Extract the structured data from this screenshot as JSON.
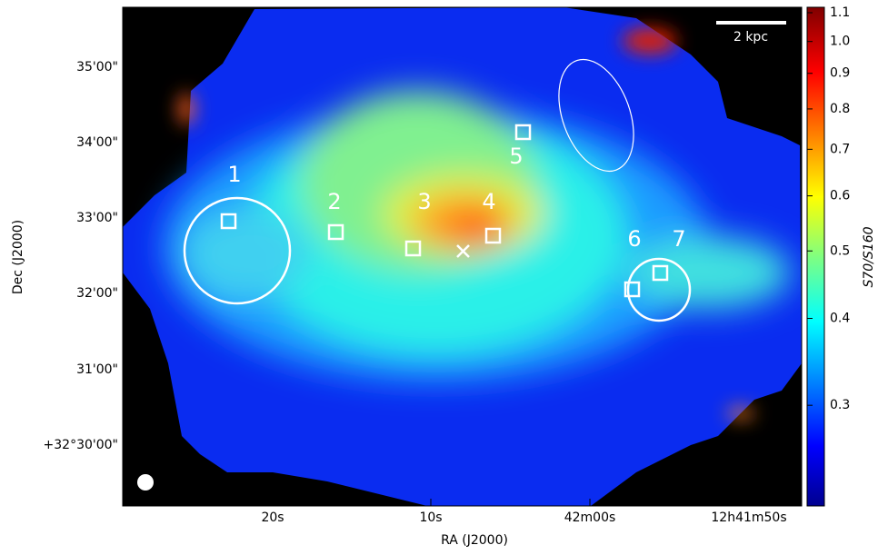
{
  "chart_data": {
    "type": "image",
    "x_label": "RA (J2000)",
    "y_label": "Dec (J2000)",
    "x_tick_labels": [
      "20s",
      "10s",
      "42m00s",
      "12h41m50s"
    ],
    "y_tick_labels": [
      "35'00\"",
      "34'00\"",
      "33'00\"",
      "32'00\"",
      "31'00\"",
      "+32°30'00\""
    ],
    "colorbar_label": "S70/S160",
    "colorbar_lim": [
      0.215,
      1.12
    ],
    "colorbar_log": true,
    "colorbar_ticks": [
      {
        "value": 1.1,
        "label": "1.1"
      },
      {
        "value": 1.0,
        "label": "1.0"
      },
      {
        "value": 0.9,
        "label": "0.9"
      },
      {
        "value": 0.8,
        "label": "0.8"
      },
      {
        "value": 0.7,
        "label": "0.7"
      },
      {
        "value": 0.6,
        "label": "0.6"
      },
      {
        "value": 0.5,
        "label": "0.5"
      },
      {
        "value": 0.4,
        "label": "0.4"
      },
      {
        "value": 0.3,
        "label": "0.3"
      }
    ],
    "scale_bar_label": "2 kpc",
    "region_labels": [
      "1",
      "2",
      "3",
      "4",
      "5",
      "6",
      "7"
    ]
  }
}
